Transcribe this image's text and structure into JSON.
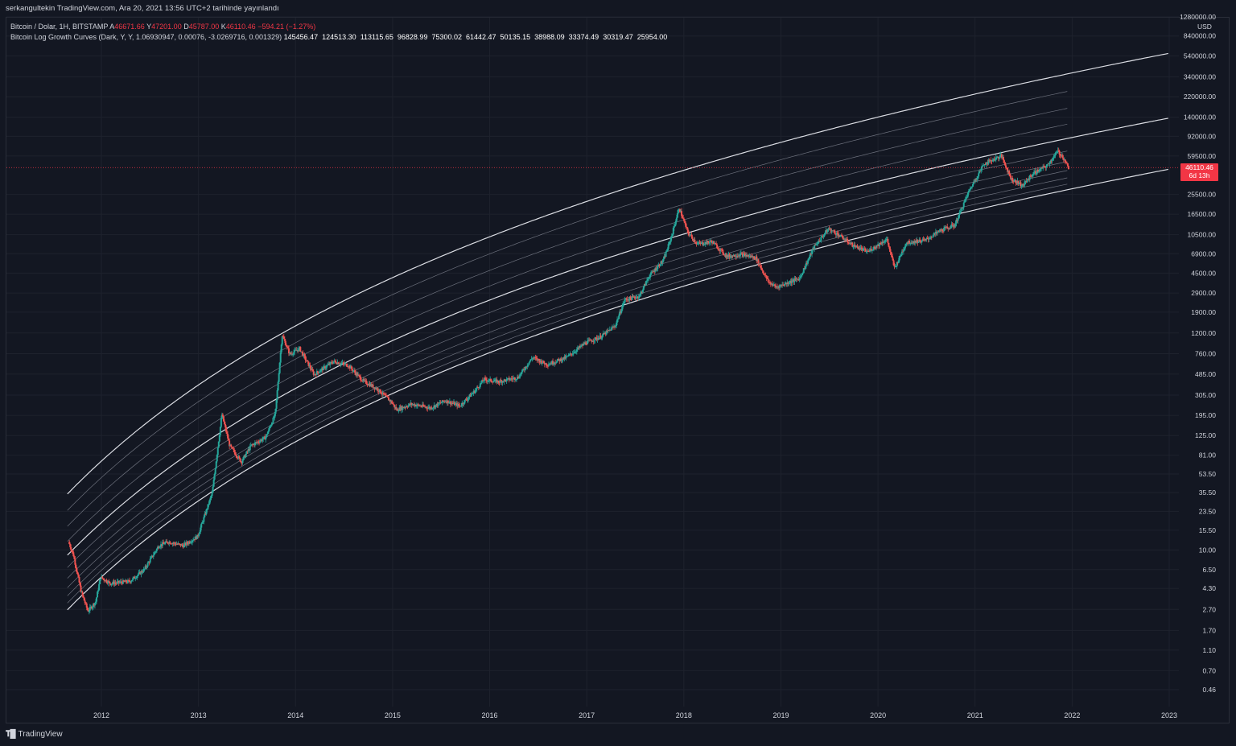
{
  "caption": "serkangultekin TradingView.com, Ara 20, 2021 13:56 UTC+2 tarihinde yayınlandı",
  "legend": {
    "symbol": "Bitcoin / Dolar, 1H, BITSTAMP",
    "open_label": "A",
    "open": "46671.66",
    "high_label": "Y",
    "high": "47201.00",
    "low_label": "D",
    "low": "45787.00",
    "close_label": "K",
    "close": "46110.46",
    "change": "−594.21 (−1.27%)",
    "indicator": "Bitcoin Log Growth Curves (Dark, Y, Y, 1.06930947, 0.00076, -3.0269716, 0.001329)",
    "indicator_values": [
      "145456.47",
      "124513.30",
      "113115.65",
      "96828.99",
      "75300.02",
      "61442.47",
      "50135.15",
      "38988.09",
      "33374.49",
      "30319.47",
      "25954.00"
    ]
  },
  "price_tag": {
    "price": "46110.46",
    "countdown": "6d 13h"
  },
  "axis_unit": "USD",
  "footer": {
    "brand": "TradingView"
  },
  "colors": {
    "background": "#131722",
    "up": "#26a69a",
    "down": "#ef5350",
    "curve": "#d1d4dc",
    "price_line": "#f23645"
  },
  "chart_data": {
    "type": "candlestick",
    "y_scale": "log",
    "y_ticks": [
      "1280000.00",
      "840000.00",
      "540000.00",
      "340000.00",
      "220000.00",
      "140000.00",
      "92000.00",
      "59500.00",
      "25500.00",
      "16500.00",
      "10500.00",
      "6900.00",
      "4500.00",
      "2900.00",
      "1900.00",
      "1200.00",
      "760.00",
      "485.00",
      "305.00",
      "195.00",
      "125.00",
      "81.00",
      "53.50",
      "35.50",
      "23.50",
      "15.50",
      "10.00",
      "6.50",
      "4.30",
      "2.70",
      "1.70",
      "1.10",
      "0.70",
      "0.46"
    ],
    "x_ticks": [
      "2012",
      "2013",
      "2014",
      "2015",
      "2016",
      "2017",
      "2018",
      "2019",
      "2020",
      "2021",
      "2022",
      "2023"
    ],
    "current_price": 46110.46,
    "price_path": [
      [
        2011.67,
        12
      ],
      [
        2011.72,
        9
      ],
      [
        2011.8,
        4
      ],
      [
        2011.87,
        2.6
      ],
      [
        2011.95,
        3.2
      ],
      [
        2012.0,
        5.5
      ],
      [
        2012.1,
        4.8
      ],
      [
        2012.3,
        5
      ],
      [
        2012.45,
        6.5
      ],
      [
        2012.6,
        11
      ],
      [
        2012.7,
        12
      ],
      [
        2012.85,
        11
      ],
      [
        2013.0,
        13.5
      ],
      [
        2013.15,
        35
      ],
      [
        2013.25,
        200
      ],
      [
        2013.33,
        100
      ],
      [
        2013.45,
        70
      ],
      [
        2013.55,
        100
      ],
      [
        2013.7,
        120
      ],
      [
        2013.8,
        200
      ],
      [
        2013.87,
        1150
      ],
      [
        2013.95,
        750
      ],
      [
        2014.05,
        850
      ],
      [
        2014.2,
        480
      ],
      [
        2014.4,
        640
      ],
      [
        2014.55,
        590
      ],
      [
        2014.7,
        420
      ],
      [
        2014.85,
        350
      ],
      [
        2015.0,
        260
      ],
      [
        2015.05,
        220
      ],
      [
        2015.2,
        250
      ],
      [
        2015.4,
        230
      ],
      [
        2015.55,
        270
      ],
      [
        2015.7,
        240
      ],
      [
        2015.85,
        330
      ],
      [
        2015.95,
        430
      ],
      [
        2016.1,
        410
      ],
      [
        2016.3,
        450
      ],
      [
        2016.45,
        700
      ],
      [
        2016.6,
        600
      ],
      [
        2016.8,
        700
      ],
      [
        2017.0,
        970
      ],
      [
        2017.15,
        1100
      ],
      [
        2017.3,
        1400
      ],
      [
        2017.4,
        2500
      ],
      [
        2017.55,
        2700
      ],
      [
        2017.65,
        4200
      ],
      [
        2017.8,
        6000
      ],
      [
        2017.88,
        10000
      ],
      [
        2017.96,
        19000
      ],
      [
        2018.05,
        11000
      ],
      [
        2018.15,
        8500
      ],
      [
        2018.3,
        9000
      ],
      [
        2018.45,
        6500
      ],
      [
        2018.6,
        6800
      ],
      [
        2018.75,
        6300
      ],
      [
        2018.88,
        3700
      ],
      [
        2018.96,
        3300
      ],
      [
        2019.2,
        4000
      ],
      [
        2019.35,
        8000
      ],
      [
        2019.5,
        12000
      ],
      [
        2019.6,
        10500
      ],
      [
        2019.75,
        8300
      ],
      [
        2019.9,
        7200
      ],
      [
        2020.1,
        9500
      ],
      [
        2020.18,
        5000
      ],
      [
        2020.3,
        8800
      ],
      [
        2020.5,
        9300
      ],
      [
        2020.65,
        11500
      ],
      [
        2020.8,
        13000
      ],
      [
        2020.95,
        28000
      ],
      [
        2021.1,
        50000
      ],
      [
        2021.28,
        60000
      ],
      [
        2021.38,
        36000
      ],
      [
        2021.5,
        31000
      ],
      [
        2021.6,
        40000
      ],
      [
        2021.75,
        48000
      ],
      [
        2021.86,
        66000
      ],
      [
        2021.92,
        57000
      ],
      [
        2021.97,
        46110
      ]
    ],
    "growth_curves": {
      "count": 11,
      "note": "log growth curves"
    }
  }
}
